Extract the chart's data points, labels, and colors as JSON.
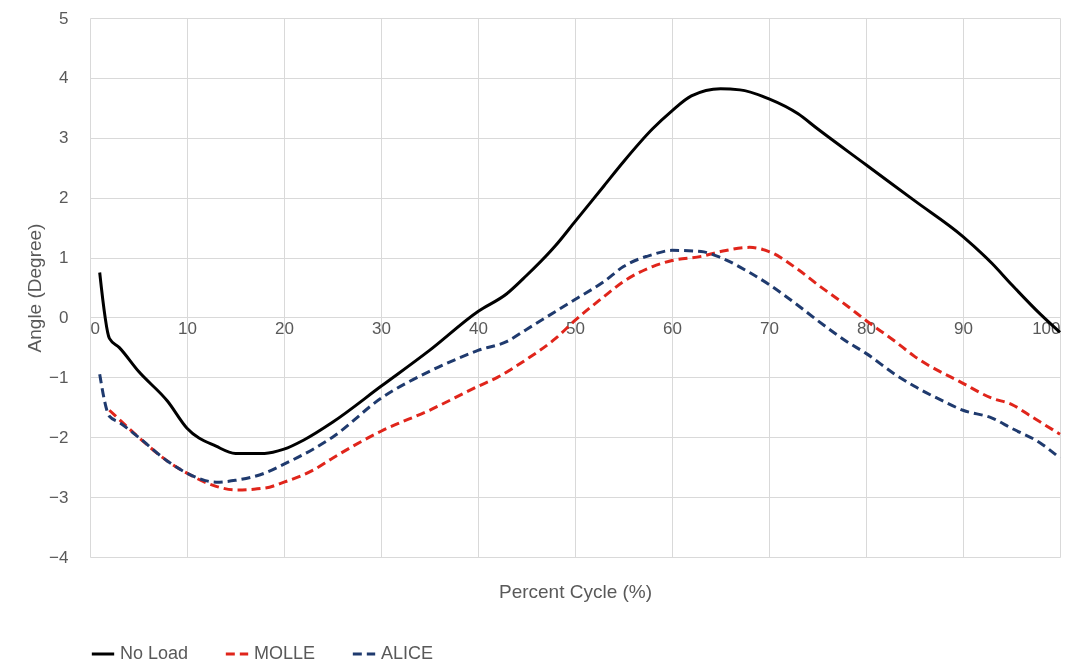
{
  "chart_data": {
    "type": "line",
    "xlabel": "Percent Cycle (%)",
    "ylabel": "Angle (Degree)",
    "xlim": [
      0,
      100
    ],
    "ylim": [
      -4,
      5
    ],
    "xticks": [
      0,
      10,
      20,
      30,
      40,
      50,
      60,
      70,
      80,
      90,
      100
    ],
    "yticks": [
      -4,
      -3,
      -2,
      -1,
      0,
      1,
      2,
      3,
      4,
      5
    ],
    "grid": true,
    "legend": "bottom",
    "series": [
      {
        "name": "No Load",
        "color": "#000000",
        "line_style": "solid",
        "x": [
          1,
          2,
          3,
          5,
          8,
          10,
          13,
          15,
          18,
          20,
          22,
          25,
          30,
          35,
          40,
          43,
          45,
          48,
          50,
          53,
          55,
          58,
          60,
          62,
          65,
          67,
          70,
          73,
          75,
          80,
          85,
          90,
          93,
          95,
          98,
          100
        ],
        "values": [
          0.75,
          -0.35,
          -0.5,
          -0.9,
          -1.4,
          -1.85,
          -2.15,
          -2.27,
          -2.27,
          -2.2,
          -2.05,
          -1.75,
          -1.15,
          -0.55,
          0.1,
          0.4,
          0.7,
          1.2,
          1.6,
          2.2,
          2.6,
          3.15,
          3.45,
          3.7,
          3.82,
          3.8,
          3.65,
          3.4,
          3.15,
          2.55,
          1.95,
          1.35,
          0.9,
          0.55,
          0.05,
          -0.25
        ]
      },
      {
        "name": "MOLLE",
        "color": "#e0251b",
        "line_style": "dashed",
        "x": [
          2,
          3,
          5,
          8,
          10,
          13,
          15,
          18,
          20,
          23,
          25,
          30,
          35,
          40,
          42,
          45,
          48,
          50,
          53,
          55,
          58,
          60,
          63,
          65,
          68,
          70,
          73,
          75,
          78,
          80,
          83,
          85,
          90,
          93,
          95,
          97,
          100
        ],
        "values": [
          -1.55,
          -1.7,
          -2.0,
          -2.4,
          -2.6,
          -2.82,
          -2.88,
          -2.85,
          -2.75,
          -2.55,
          -2.35,
          -1.9,
          -1.55,
          -1.15,
          -1.0,
          -0.7,
          -0.35,
          -0.05,
          0.35,
          0.6,
          0.85,
          0.95,
          1.02,
          1.1,
          1.17,
          1.1,
          0.8,
          0.55,
          0.2,
          -0.05,
          -0.4,
          -0.65,
          -1.1,
          -1.35,
          -1.45,
          -1.65,
          -1.95
        ]
      },
      {
        "name": "ALICE",
        "color": "#1f3a6e",
        "line_style": "dashed",
        "x": [
          1,
          2,
          3,
          5,
          8,
          10,
          13,
          15,
          18,
          20,
          23,
          25,
          30,
          35,
          38,
          40,
          43,
          45,
          48,
          50,
          53,
          55,
          58,
          60,
          63,
          65,
          68,
          70,
          73,
          75,
          78,
          80,
          83,
          85,
          88,
          90,
          93,
          95,
          98,
          100
        ],
        "values": [
          -0.95,
          -1.65,
          -1.75,
          -2.0,
          -2.4,
          -2.6,
          -2.75,
          -2.72,
          -2.6,
          -2.45,
          -2.2,
          -2.0,
          -1.35,
          -0.9,
          -0.68,
          -0.55,
          -0.4,
          -0.2,
          0.1,
          0.3,
          0.6,
          0.85,
          1.05,
          1.12,
          1.1,
          1.0,
          0.75,
          0.55,
          0.2,
          -0.05,
          -0.4,
          -0.6,
          -0.95,
          -1.15,
          -1.4,
          -1.55,
          -1.68,
          -1.85,
          -2.1,
          -2.35
        ]
      }
    ]
  }
}
